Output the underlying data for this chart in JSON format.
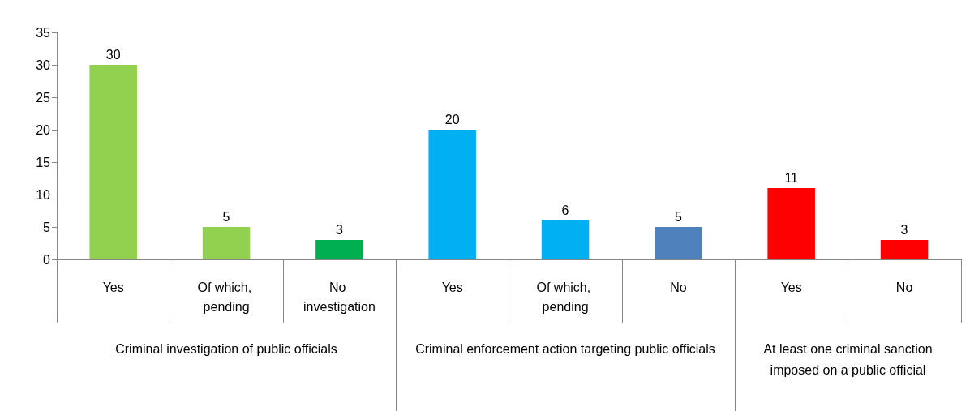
{
  "chart_data": [
    {
      "type": "bar",
      "xlabel": "Criminal investigation of public officials",
      "categories": [
        "Yes",
        "Of which, pending",
        "No investigation"
      ],
      "values": [
        30,
        5,
        3
      ],
      "colors": [
        "#92d050",
        "#92d050",
        "#00b050"
      ],
      "ylim": [
        0,
        35
      ],
      "yticks": [
        0,
        5,
        10,
        15,
        20,
        25,
        30,
        35
      ],
      "data_labels": true
    },
    {
      "type": "bar",
      "xlabel": "Criminal enforcement action targeting public officials",
      "categories": [
        "Yes",
        "Of which, pending",
        "No"
      ],
      "values": [
        20,
        6,
        5
      ],
      "colors": [
        "#00b0f0",
        "#00b0f0",
        "#4f81bd"
      ],
      "ylim": [
        0,
        35
      ],
      "yticks": [
        0,
        5,
        10,
        15,
        20,
        25,
        30,
        35
      ],
      "data_labels": true,
      "tick_labels": "x"
    },
    {
      "type": "bar",
      "xlabel": "At least one criminal sanction imposed on a public official",
      "categories": [
        "Yes",
        "No"
      ],
      "values": [
        11,
        3
      ],
      "colors": [
        "#ff0000",
        "#ff0000"
      ],
      "ylim": [
        0,
        35
      ],
      "yticks": [
        0,
        5,
        10,
        15,
        20,
        25,
        30,
        35
      ],
      "data_labels": true,
      "tick_labels": "x"
    }
  ]
}
